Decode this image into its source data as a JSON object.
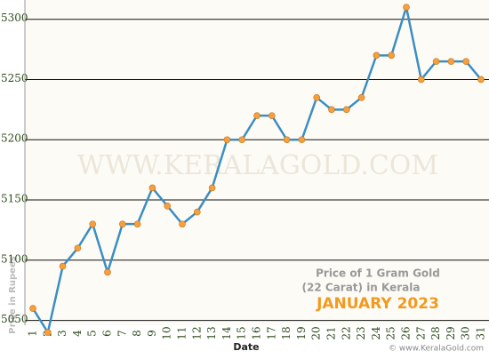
{
  "chart_data": {
    "type": "line",
    "title": [
      "Price of 1 Gram Gold",
      "(22 Carat) in Kerala"
    ],
    "subtitle": "JANUARY 2023",
    "x_label": "Date",
    "y_label": "Price in Rupees",
    "watermark": "WWW.KERALAGOLD.COM",
    "credit": "© www.KeralaGold.com",
    "categories": [
      "1",
      "2",
      "3",
      "4",
      "5",
      "6",
      "7",
      "8",
      "9",
      "10",
      "11",
      "12",
      "13",
      "14",
      "15",
      "16",
      "17",
      "18",
      "19",
      "20",
      "21",
      "22",
      "23",
      "24",
      "25",
      "26",
      "27",
      "28",
      "29",
      "30",
      "31"
    ],
    "series": [
      {
        "name": "Price",
        "color": "#3b8ec2",
        "marker_color": "#f5a03c",
        "values": [
          5060,
          5040,
          5095,
          5110,
          5130,
          5090,
          5130,
          5130,
          5160,
          5145,
          5130,
          5140,
          5160,
          5200,
          5200,
          5220,
          5220,
          5200,
          5200,
          5235,
          5225,
          5225,
          5235,
          5270,
          5270,
          5310,
          5250,
          5265,
          5265,
          5265,
          5250
        ]
      }
    ],
    "ylim": [
      5046,
      5316
    ],
    "yticks": [
      5050,
      5100,
      5150,
      5200,
      5250,
      5300
    ],
    "grid": true
  }
}
